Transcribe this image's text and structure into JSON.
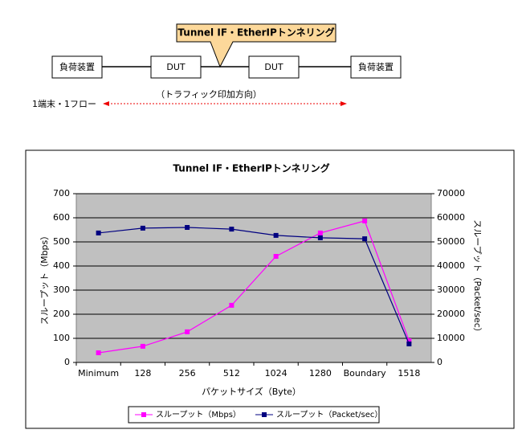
{
  "diagram": {
    "callout": "Tunnel IF・EtherIPトンネリング",
    "left_device": "負荷装置",
    "dut1": "DUT",
    "dut2": "DUT",
    "right_device": "負荷装置",
    "direction": "（トラフィック印加方向）",
    "flow": "1端末・1フロー"
  },
  "chart_data": {
    "type": "line",
    "title": "Tunnel IF・EtherIPトンネリング",
    "x_label": "パケットサイズ（Byte）",
    "y_label": "スループット（Mbps）",
    "y2_label": "スループット（Packet/sec）",
    "categories": [
      "Minimum",
      "128",
      "256",
      "512",
      "1024",
      "1280",
      "Boundary",
      "1518"
    ],
    "series": [
      {
        "name": "スループット（Mbps）",
        "color": "#ff00ff",
        "values": [
          40,
          67,
          127,
          237,
          440,
          537,
          587,
          90
        ]
      },
      {
        "name": "スループット（Packet/sec）",
        "color": "#000080",
        "axis": "y2",
        "values": [
          53700,
          55700,
          56000,
          55300,
          52700,
          51700,
          51300,
          7700
        ]
      }
    ],
    "ylim": [
      0,
      700
    ],
    "yticks": [
      0,
      100,
      200,
      300,
      400,
      500,
      600,
      700
    ],
    "y2lim": [
      0,
      70000
    ],
    "y2ticks": [
      0,
      10000,
      20000,
      30000,
      40000,
      50000,
      60000,
      70000
    ],
    "grid": true,
    "legend": "bottom"
  }
}
